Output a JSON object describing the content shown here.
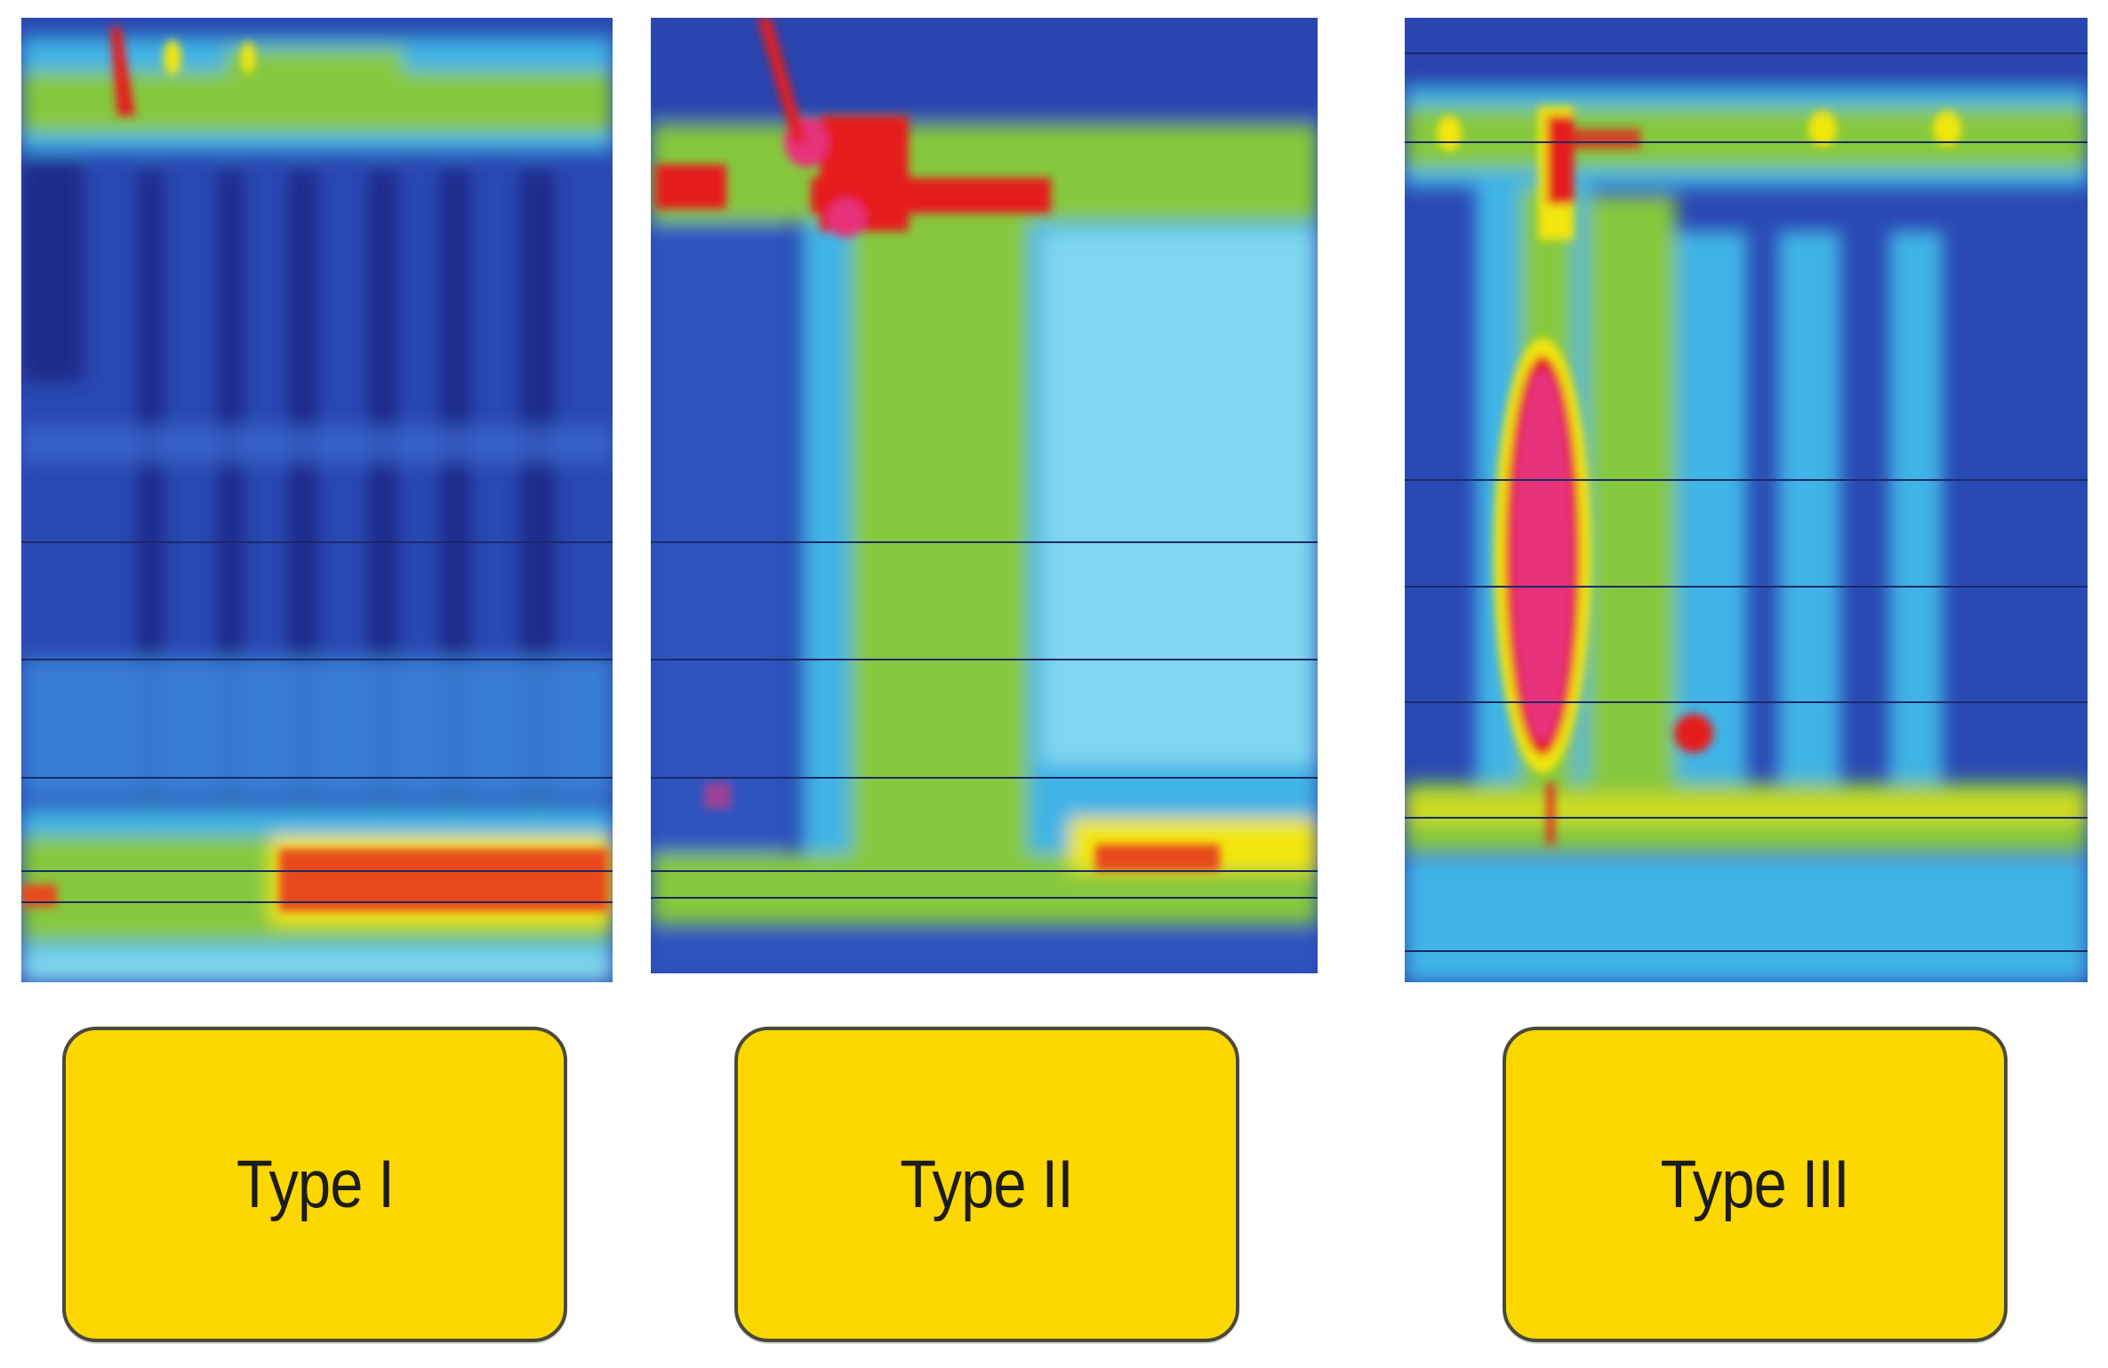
{
  "panels": [
    {
      "id": "type-1",
      "label": "Type I"
    },
    {
      "id": "type-2",
      "label": "Type II"
    },
    {
      "id": "type-3",
      "label": "Type III"
    }
  ],
  "colors": {
    "dark_blue": "#1e2f8f",
    "blue": "#2d55c0",
    "light_blue": "#41b4e6",
    "cyan": "#7fd6ee",
    "green": "#7cc23a",
    "yellow": "#f2e60c",
    "red": "#e51f1f",
    "magenta": "#e6337a",
    "label_fill": "#fdd700"
  }
}
